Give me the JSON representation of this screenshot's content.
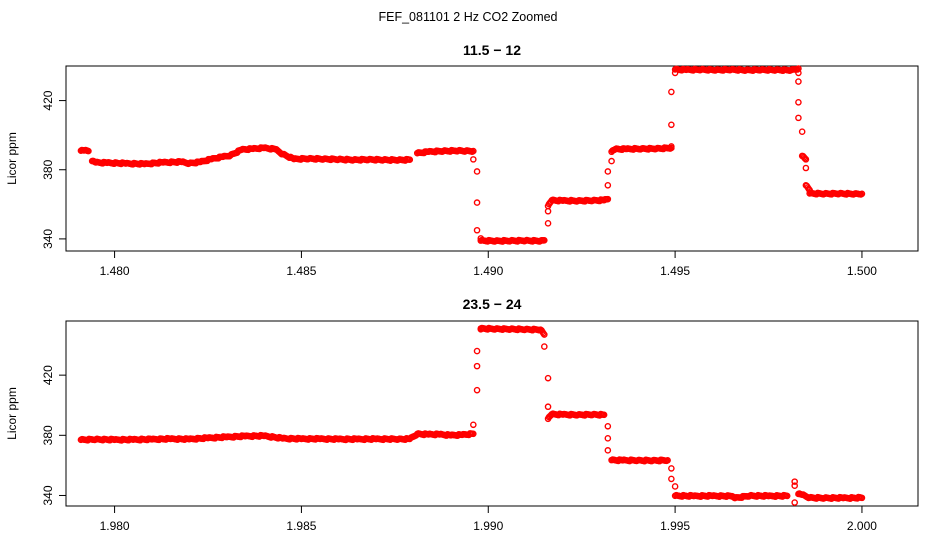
{
  "figure": {
    "title": "FEF_081101  2 Hz CO2 Zoomed"
  },
  "chart_data": [
    {
      "type": "scatter",
      "title": "11.5 − 12",
      "xlabel": "",
      "ylabel": "Licor ppm",
      "xlim": [
        1.4787,
        1.5015
      ],
      "ylim": [
        333,
        440
      ],
      "xticks": [
        1.48,
        1.485,
        1.49,
        1.495,
        1.5
      ],
      "xtick_labels": [
        "1.480",
        "1.485",
        "1.490",
        "1.495",
        "1.500"
      ],
      "yticks": [
        340,
        380,
        420
      ],
      "ytick_labels": [
        "340",
        "380",
        "420"
      ],
      "grid": false,
      "marker_color": "#ff0000",
      "series": [
        {
          "points": [
            [
              1.4791,
              391
            ],
            [
              1.4792,
              391.2
            ],
            [
              1.4793,
              390.8
            ],
            [
              1.4794,
              385
            ],
            [
              1.4795,
              384.2
            ],
            [
              1.4798,
              384
            ],
            [
              1.4803,
              383.6
            ],
            [
              1.4808,
              383.3
            ],
            [
              1.4813,
              384.2
            ],
            [
              1.4818,
              384.5
            ],
            [
              1.482,
              383.7
            ],
            [
              1.4823,
              384.5
            ],
            [
              1.4826,
              386.2
            ],
            [
              1.4829,
              387.5
            ],
            [
              1.4831,
              388.3
            ],
            [
              1.4834,
              391.6
            ],
            [
              1.4837,
              392.1
            ],
            [
              1.484,
              392.6
            ],
            [
              1.4843,
              391.9
            ],
            [
              1.4845,
              389.0
            ],
            [
              1.4848,
              386.2
            ],
            [
              1.4852,
              386.4
            ],
            [
              1.4856,
              386.2
            ],
            [
              1.486,
              386.0
            ],
            [
              1.4864,
              385.7
            ],
            [
              1.4868,
              385.9
            ],
            [
              1.4872,
              385.7
            ],
            [
              1.4876,
              385.6
            ],
            [
              1.4879,
              385.8
            ],
            [
              1.4881,
              389.6
            ],
            [
              1.4884,
              390.4
            ],
            [
              1.4888,
              390.8
            ],
            [
              1.4892,
              391.0
            ],
            [
              1.4894,
              390.9
            ],
            [
              1.4896,
              390.8
            ],
            [
              1.4896,
              386
            ],
            [
              1.4897,
              379
            ],
            [
              1.4897,
              361
            ],
            [
              1.4897,
              345
            ],
            [
              1.4898,
              340.3
            ],
            [
              1.4898,
              339.0
            ],
            [
              1.4902,
              338.8
            ],
            [
              1.4906,
              338.9
            ],
            [
              1.491,
              339.0
            ],
            [
              1.4914,
              338.8
            ],
            [
              1.4915,
              339.2
            ],
            [
              1.4916,
              349
            ],
            [
              1.4916,
              356
            ],
            [
              1.4916,
              359
            ],
            [
              1.4917,
              362.3
            ],
            [
              1.492,
              362.1
            ],
            [
              1.4924,
              362.0
            ],
            [
              1.4928,
              362.2
            ],
            [
              1.4931,
              362.4
            ],
            [
              1.4932,
              363
            ],
            [
              1.4932,
              371
            ],
            [
              1.4932,
              379
            ],
            [
              1.4933,
              385
            ],
            [
              1.4933,
              390.4
            ],
            [
              1.4934,
              391.9
            ],
            [
              1.4937,
              392.0
            ],
            [
              1.4941,
              392.1
            ],
            [
              1.4945,
              392.2
            ],
            [
              1.4949,
              392.6
            ],
            [
              1.4949,
              393.5
            ],
            [
              1.4949,
              406
            ],
            [
              1.4949,
              425
            ],
            [
              1.495,
              436
            ],
            [
              1.495,
              438.0
            ],
            [
              1.4953,
              437.8
            ],
            [
              1.4957,
              437.9
            ],
            [
              1.4961,
              437.7
            ],
            [
              1.4965,
              437.9
            ],
            [
              1.4969,
              437.6
            ],
            [
              1.4973,
              437.8
            ],
            [
              1.4977,
              437.7
            ],
            [
              1.4981,
              437.6
            ],
            [
              1.4983,
              438.5
            ],
            [
              1.4983,
              436
            ],
            [
              1.4983,
              431
            ],
            [
              1.4983,
              419
            ],
            [
              1.4983,
              410
            ],
            [
              1.4984,
              402
            ],
            [
              1.4984,
              388
            ],
            [
              1.4985,
              386
            ],
            [
              1.4985,
              381
            ],
            [
              1.4985,
              371
            ],
            [
              1.4986,
              368.2
            ],
            [
              1.4986,
              366.3
            ],
            [
              1.499,
              366.1
            ],
            [
              1.4994,
              366.2
            ],
            [
              1.4998,
              366.0
            ],
            [
              1.5,
              366.1
            ]
          ]
        }
      ]
    },
    {
      "type": "scatter",
      "title": "23.5 − 24",
      "xlabel": "",
      "ylabel": "Licor ppm",
      "xlim": [
        1.9787,
        2.0015
      ],
      "ylim": [
        333,
        456
      ],
      "xticks": [
        1.98,
        1.985,
        1.99,
        1.995,
        2.0
      ],
      "xtick_labels": [
        "1.980",
        "1.985",
        "1.990",
        "1.995",
        "2.000"
      ],
      "yticks": [
        340,
        380,
        420
      ],
      "ytick_labels": [
        "340",
        "380",
        "420"
      ],
      "grid": false,
      "marker_color": "#ff0000",
      "series": [
        {
          "points": [
            [
              1.9791,
              377.0
            ],
            [
              1.9795,
              377.3
            ],
            [
              1.98,
              377.0
            ],
            [
              1.9805,
              377.1
            ],
            [
              1.981,
              377.3
            ],
            [
              1.9815,
              377.6
            ],
            [
              1.982,
              377.4
            ],
            [
              1.9825,
              378.2
            ],
            [
              1.983,
              378.8
            ],
            [
              1.9835,
              379.4
            ],
            [
              1.984,
              379.6
            ],
            [
              1.9845,
              377.9
            ],
            [
              1.985,
              377.6
            ],
            [
              1.9855,
              377.6
            ],
            [
              1.986,
              377.4
            ],
            [
              1.9865,
              377.4
            ],
            [
              1.987,
              377.5
            ],
            [
              1.9876,
              377.4
            ],
            [
              1.9879,
              377.6
            ],
            [
              1.9881,
              380.9
            ],
            [
              1.9884,
              380.6
            ],
            [
              1.9887,
              380.6
            ],
            [
              1.989,
              380.0
            ],
            [
              1.9893,
              380.3
            ],
            [
              1.9896,
              381.0
            ],
            [
              1.9896,
              387
            ],
            [
              1.9897,
              410
            ],
            [
              1.9897,
              426
            ],
            [
              1.9897,
              436
            ],
            [
              1.9898,
              450.5
            ],
            [
              1.9898,
              451.0
            ],
            [
              1.9902,
              450.7
            ],
            [
              1.9906,
              450.6
            ],
            [
              1.991,
              450.4
            ],
            [
              1.9914,
              450.2
            ],
            [
              1.9915,
              447
            ],
            [
              1.9915,
              439
            ],
            [
              1.9916,
              418
            ],
            [
              1.9916,
              399
            ],
            [
              1.9916,
              391
            ],
            [
              1.9917,
              394.0
            ],
            [
              1.992,
              393.8
            ],
            [
              1.9924,
              393.6
            ],
            [
              1.9928,
              393.8
            ],
            [
              1.9931,
              393.6
            ],
            [
              1.9932,
              386
            ],
            [
              1.9932,
              378
            ],
            [
              1.9932,
              370
            ],
            [
              1.9933,
              363.5
            ],
            [
              1.9936,
              363.4
            ],
            [
              1.994,
              363.3
            ],
            [
              1.9944,
              363.2
            ],
            [
              1.9948,
              363.4
            ],
            [
              1.9949,
              358
            ],
            [
              1.9949,
              351
            ],
            [
              1.995,
              346
            ],
            [
              1.995,
              339.8
            ],
            [
              1.9955,
              339.6
            ],
            [
              1.996,
              339.7
            ],
            [
              1.9965,
              339.5
            ],
            [
              1.9966,
              338.3
            ],
            [
              1.997,
              339.8
            ],
            [
              1.9975,
              339.6
            ],
            [
              1.998,
              339.7
            ],
            [
              1.9982,
              349.2
            ],
            [
              1.9982,
              346.5
            ],
            [
              1.9982,
              335.3
            ],
            [
              1.9983,
              341.0
            ],
            [
              1.9984,
              340.5
            ],
            [
              1.9986,
              338.5
            ],
            [
              1.999,
              338.3
            ],
            [
              1.9995,
              338.3
            ],
            [
              2.0,
              338.4
            ]
          ]
        }
      ]
    }
  ]
}
